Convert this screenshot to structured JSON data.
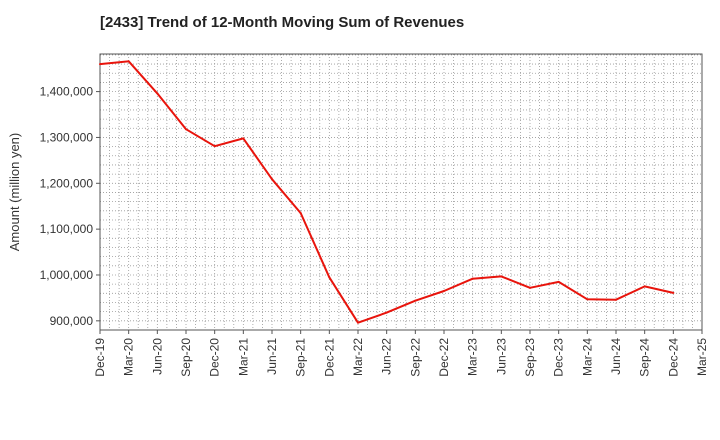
{
  "chart_data": {
    "type": "line",
    "title": "[2433]  Trend of 12-Month Moving Sum of Revenues",
    "ylabel": "Amount (million yen)",
    "xlabel": "",
    "x_tick_labels": [
      "Dec-19",
      "Mar-20",
      "Jun-20",
      "Sep-20",
      "Dec-20",
      "Mar-21",
      "Jun-21",
      "Sep-21",
      "Dec-21",
      "Mar-22",
      "Jun-22",
      "Sep-22",
      "Dec-22",
      "Mar-23",
      "Jun-23",
      "Sep-23",
      "Dec-23",
      "Mar-24",
      "Jun-24",
      "Sep-24",
      "Dec-24",
      "Mar-25"
    ],
    "y_tick_labels": [
      "900,000",
      "1,000,000",
      "1,100,000",
      "1,200,000",
      "1,300,000",
      "1,400,000"
    ],
    "y_ticks": [
      900000,
      1000000,
      1100000,
      1200000,
      1300000,
      1400000
    ],
    "ylim": [
      880000,
      1482000
    ],
    "grid": true,
    "series": [
      {
        "color": "#e8140c",
        "x": [
          "Dec-19",
          "Mar-20",
          "Jun-20",
          "Sep-20",
          "Dec-20",
          "Mar-21",
          "Jun-21",
          "Sep-21",
          "Dec-21",
          "Mar-22",
          "Jun-22",
          "Sep-22",
          "Dec-22",
          "Mar-23",
          "Jun-23",
          "Sep-23",
          "Dec-23",
          "Mar-24",
          "Jun-24",
          "Sep-24",
          "Dec-24"
        ],
        "values": [
          1460000,
          1466000,
          1396000,
          1318000,
          1281000,
          1298000,
          1209000,
          1135000,
          995000,
          896000,
          918000,
          944000,
          965000,
          992000,
          997000,
          972000,
          985000,
          947000,
          946000,
          975000,
          961000
        ]
      }
    ]
  }
}
